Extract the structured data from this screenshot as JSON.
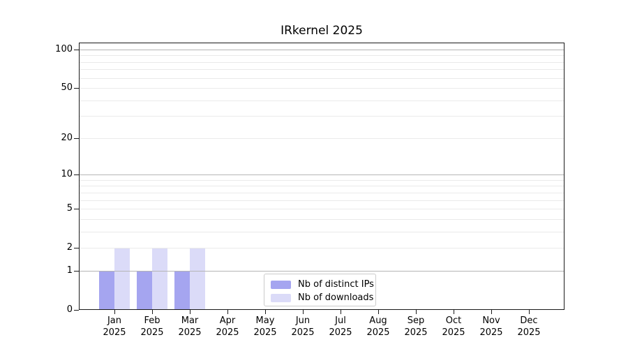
{
  "chart_data": {
    "type": "bar",
    "title": "IRkernel 2025",
    "categories": [
      "Jan 2025",
      "Feb 2025",
      "Mar 2025",
      "Apr 2025",
      "May 2025",
      "Jun 2025",
      "Jul 2025",
      "Aug 2025",
      "Sep 2025",
      "Oct 2025",
      "Nov 2025",
      "Dec 2025"
    ],
    "series": [
      {
        "name": "Nb of distinct IPs",
        "color": "#a5a5f0",
        "values": [
          1,
          1,
          1,
          0,
          0,
          0,
          0,
          0,
          0,
          0,
          0,
          0
        ]
      },
      {
        "name": "Nb of downloads",
        "color": "#dbdbf8",
        "values": [
          2,
          2,
          2,
          0,
          0,
          0,
          0,
          0,
          0,
          0,
          0,
          0
        ]
      }
    ],
    "xlabel": "",
    "ylabel": "",
    "y_scale": "log1p",
    "ylim": [
      0,
      110
    ],
    "y_tick_labels": [
      100,
      50,
      20,
      10,
      5,
      2,
      1,
      0
    ],
    "y_major_gridlines": [
      1,
      10,
      100
    ],
    "y_minor_gridlines": [
      2,
      3,
      4,
      5,
      6,
      7,
      8,
      9,
      20,
      30,
      40,
      50,
      60,
      70,
      80,
      90
    ],
    "grid": "horizontal, major and minor",
    "legend_position": "lower center",
    "colors": {
      "major_grid": "#b5b5b5",
      "minor_grid": "#eaeaea",
      "spine": "#1a1a1a",
      "text": "#000000",
      "background": "#ffffff"
    }
  }
}
